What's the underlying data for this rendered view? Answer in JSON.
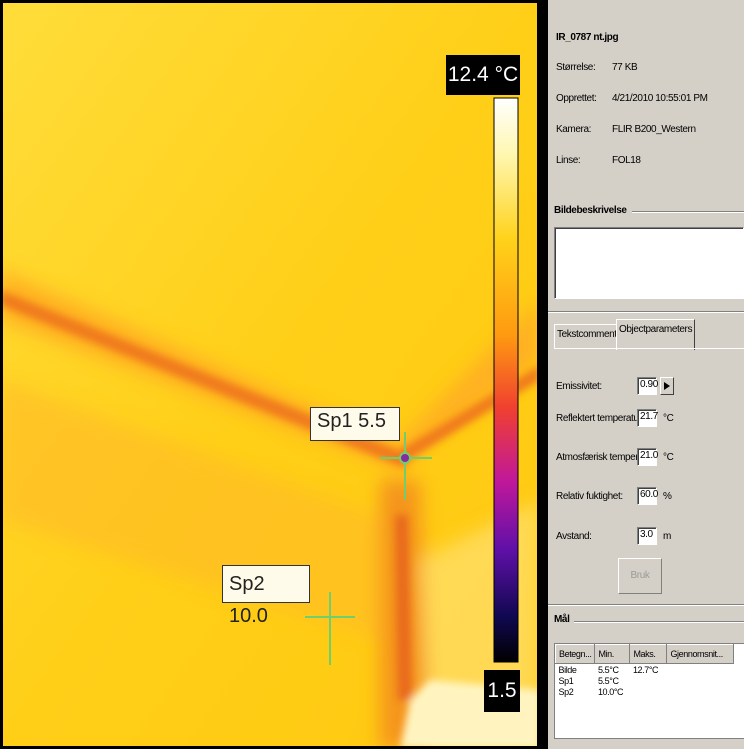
{
  "image": {
    "scale_max": "12.4 °C",
    "scale_min": "1.5",
    "spots": [
      {
        "label": "Sp1 5.5"
      },
      {
        "label": "Sp2 10.0"
      }
    ]
  },
  "file_info": {
    "filename": "IR_0787 nt.jpg",
    "rows": [
      {
        "label": "Størrelse:",
        "value": "77 KB"
      },
      {
        "label": "Opprettet:",
        "value": "4/21/2010 10:55:01 PM"
      },
      {
        "label": "Kamera:",
        "value": "FLIR B200_Western"
      },
      {
        "label": "Linse:",
        "value": "FOL18"
      }
    ]
  },
  "description": {
    "title": "Bildebeskrivelse"
  },
  "tabs": [
    "Tekstcommentaren",
    "Objectparameters"
  ],
  "parameters": [
    {
      "label": "Emissivitet:",
      "value": "0.90"
    },
    {
      "label": "Reflektert temperatur:",
      "value": "21.7",
      "unit": "°C"
    },
    {
      "label": "Atmosfærisk temperatur:",
      "value": "21.0",
      "unit": "°C"
    },
    {
      "label": "Relativ fuktighet:",
      "value": "60.0",
      "unit": "%"
    },
    {
      "label": "Avstand:",
      "value": "3.0",
      "unit": "m"
    }
  ],
  "button": "Bruk",
  "measurements": {
    "title": "Mål",
    "columns": [
      "Betegn...",
      "Min.",
      "Maks.",
      "Gjennomsnit..."
    ],
    "rows": [
      [
        "Bilde",
        "5.5°C",
        "12.7°C"
      ],
      [
        "Sp1",
        "5.5°C"
      ],
      [
        "Sp2",
        "10.0°C"
      ]
    ]
  }
}
